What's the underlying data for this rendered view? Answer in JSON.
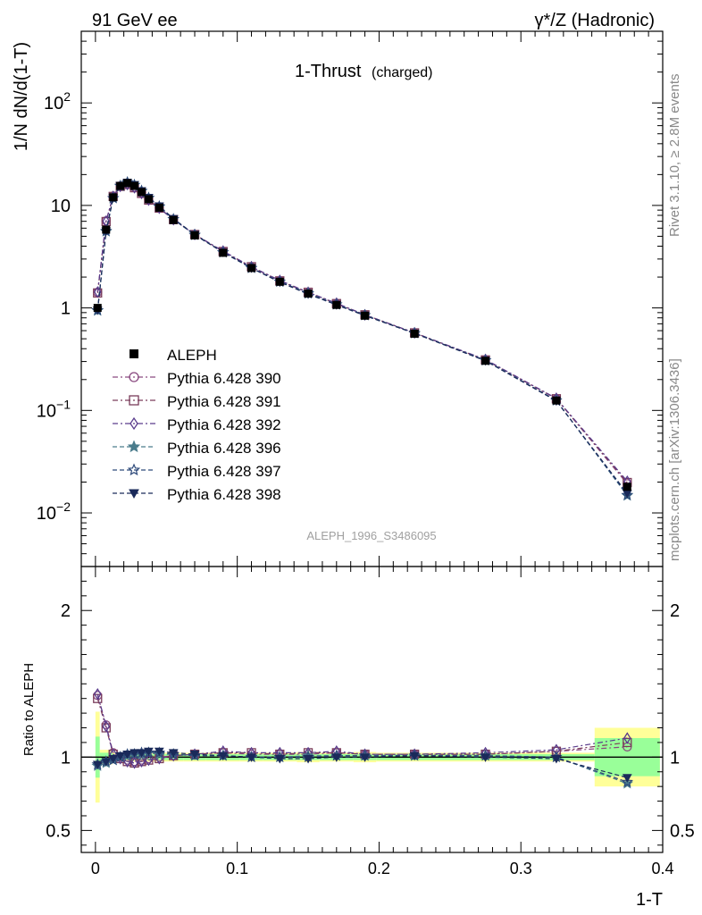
{
  "header": {
    "left": "91 GeV ee",
    "right_sup": "γ*/Z (Hadronic)"
  },
  "side": {
    "rivet": "Rivet 3.1.10, ≥ 2.8M events",
    "source": "mcplots.cern.ch [arXiv:1306.3436]"
  },
  "chart_data": {
    "type": "line",
    "title": "1-Thrust",
    "title_sub": "(charged)",
    "analysis": "ALEPH_1996_S3486095",
    "xlabel": "1-T",
    "ylabel": "1/N dN/d(1-T)",
    "ratio_ylabel": "Ratio to ALEPH",
    "xlim": [
      -0.01,
      0.4
    ],
    "ylim": [
      0.003,
      500
    ],
    "yscale": "log",
    "ratio_ylim": [
      0.35,
      2.3
    ],
    "x_ticks": [
      "0",
      "0.1",
      "0.2",
      "0.3",
      "0.4"
    ],
    "y_ticks": [
      {
        "base": "10",
        "exp": "2",
        "v": 100
      },
      {
        "base": "10",
        "exp": "",
        "v": 10
      },
      {
        "base": "1",
        "exp": "",
        "v": 1
      },
      {
        "base": "10",
        "exp": "−1",
        "v": 0.1
      },
      {
        "base": "10",
        "exp": "−2",
        "v": 0.01
      }
    ],
    "ratio_ticks": [
      "2",
      "1",
      "0.5"
    ],
    "legend_position": "middle-left",
    "x": [
      0.0015,
      0.0075,
      0.0125,
      0.0175,
      0.0225,
      0.0275,
      0.0325,
      0.0375,
      0.045,
      0.055,
      0.07,
      0.09,
      0.11,
      0.13,
      0.15,
      0.17,
      0.19,
      0.225,
      0.275,
      0.325,
      0.375
    ],
    "data": {
      "name": "ALEPH",
      "values": [
        1.0,
        5.8,
        12.0,
        15.5,
        16.5,
        15.5,
        13.5,
        11.5,
        9.5,
        7.2,
        5.1,
        3.45,
        2.45,
        1.8,
        1.38,
        1.07,
        0.84,
        0.56,
        0.305,
        0.125,
        0.018
      ],
      "band_inner": [
        0.14,
        0.03,
        0.02,
        0.02,
        0.02,
        0.02,
        0.02,
        0.02,
        0.02,
        0.02,
        0.02,
        0.02,
        0.02,
        0.02,
        0.02,
        0.02,
        0.02,
        0.02,
        0.02,
        0.02,
        0.13
      ],
      "band_outer": [
        0.31,
        0.05,
        0.04,
        0.03,
        0.03,
        0.03,
        0.03,
        0.03,
        0.03,
        0.03,
        0.03,
        0.03,
        0.03,
        0.03,
        0.035,
        0.03,
        0.035,
        0.03,
        0.03,
        0.03,
        0.2
      ]
    },
    "series": [
      {
        "name": "Pythia 6.428 390",
        "color": "#8a4a80",
        "marker": "circle",
        "ratio": [
          1.42,
          1.22,
          1.03,
          1.0,
          0.98,
          0.97,
          0.98,
          0.99,
          1.0,
          1.01,
          1.02,
          1.03,
          1.02,
          1.02,
          1.02,
          1.03,
          1.02,
          1.02,
          1.02,
          1.04,
          1.07
        ]
      },
      {
        "name": "Pythia 6.428 391",
        "color": "#7a3c5a",
        "marker": "square",
        "ratio": [
          1.4,
          1.2,
          1.02,
          0.99,
          0.97,
          0.96,
          0.97,
          0.98,
          0.99,
          1.01,
          1.02,
          1.03,
          1.03,
          1.02,
          1.03,
          1.03,
          1.02,
          1.02,
          1.02,
          1.04,
          1.1
        ]
      },
      {
        "name": "Pythia 6.428 392",
        "color": "#5a3c8c",
        "marker": "diamond",
        "ratio": [
          1.43,
          1.21,
          1.02,
          0.99,
          0.97,
          0.96,
          0.97,
          0.98,
          0.99,
          1.01,
          1.02,
          1.04,
          1.03,
          1.03,
          1.03,
          1.04,
          1.02,
          1.02,
          1.03,
          1.05,
          1.13
        ]
      },
      {
        "name": "Pythia 6.428 396",
        "color": "#4a7c8c",
        "marker": "star",
        "ratio": [
          0.94,
          0.96,
          0.98,
          1.0,
          1.01,
          1.02,
          1.02,
          1.03,
          1.02,
          1.02,
          1.01,
          1.01,
          1.0,
          1.0,
          1.01,
          1.01,
          1.01,
          1.01,
          1.01,
          1.0,
          0.82
        ]
      },
      {
        "name": "Pythia 6.428 397",
        "color": "#2e4a7a",
        "marker": "star-open",
        "ratio": [
          0.95,
          0.97,
          0.98,
          1.0,
          1.02,
          1.02,
          1.03,
          1.03,
          1.03,
          1.02,
          1.01,
          1.01,
          1.0,
          1.0,
          1.0,
          1.01,
          1.01,
          1.01,
          1.01,
          1.0,
          0.83
        ]
      },
      {
        "name": "Pythia 6.428 398",
        "color": "#1a2a5a",
        "marker": "triangle-down",
        "ratio": [
          0.95,
          0.97,
          0.99,
          1.01,
          1.02,
          1.03,
          1.03,
          1.04,
          1.04,
          1.03,
          1.02,
          1.01,
          1.0,
          0.99,
          0.99,
          1.0,
          1.0,
          1.01,
          1.0,
          0.99,
          0.86
        ]
      }
    ]
  }
}
